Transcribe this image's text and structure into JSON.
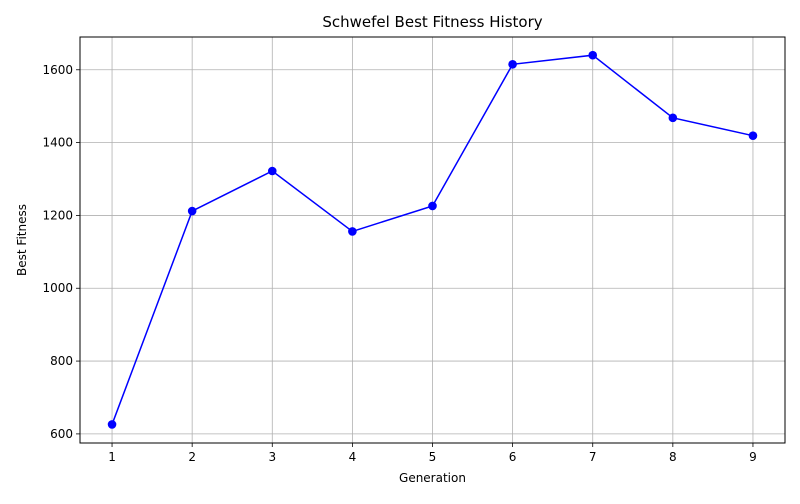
{
  "chart_data": {
    "type": "line",
    "title": "Schwefel Best Fitness History",
    "xlabel": "Generation",
    "ylabel": "Best Fitness",
    "x": [
      1,
      2,
      3,
      4,
      5,
      6,
      7,
      8,
      9
    ],
    "series": [
      {
        "values": [
          626,
          1212,
          1322,
          1156,
          1226,
          1615,
          1640,
          1468,
          1419
        ],
        "color": "#0000ff",
        "marker": "circle"
      }
    ],
    "xlim": [
      0.6,
      9.4
    ],
    "ylim": [
      575,
      1690
    ],
    "xticks": [
      1,
      2,
      3,
      4,
      5,
      6,
      7,
      8,
      9
    ],
    "yticks": [
      600,
      800,
      1000,
      1200,
      1400,
      1600
    ],
    "xtick_labels": [
      "1",
      "2",
      "3",
      "4",
      "5",
      "6",
      "7",
      "8",
      "9"
    ],
    "ytick_labels": [
      "600",
      "800",
      "1000",
      "1200",
      "1400",
      "1600"
    ],
    "grid": true,
    "grid_color": "#b0b0b0",
    "axis_color": "#000000"
  }
}
